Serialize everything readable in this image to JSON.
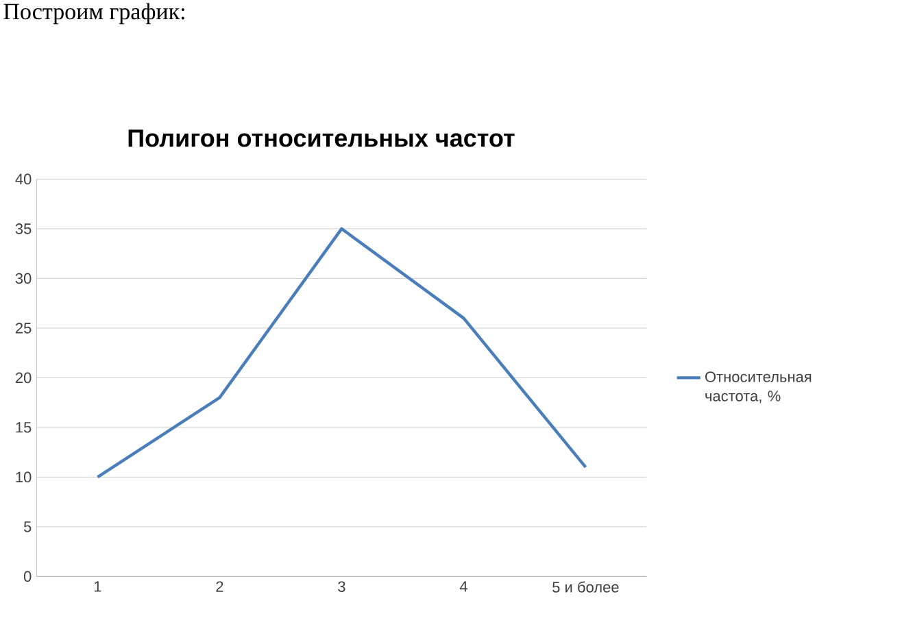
{
  "chart_data": {
    "type": "line",
    "title": "Полигон относительных частот",
    "annotations": [
      "Построим график:"
    ],
    "categories": [
      "1",
      "2",
      "3",
      "4",
      "5 и более"
    ],
    "series": [
      {
        "name": "Относительная частота, %",
        "color": "#4a7ebb",
        "values": [
          10,
          18,
          35,
          26,
          11
        ]
      }
    ],
    "ylim": [
      0,
      40
    ],
    "yticks": [
      0,
      5,
      10,
      15,
      20,
      25,
      30,
      35,
      40
    ],
    "grid": "y",
    "legend": "right"
  }
}
